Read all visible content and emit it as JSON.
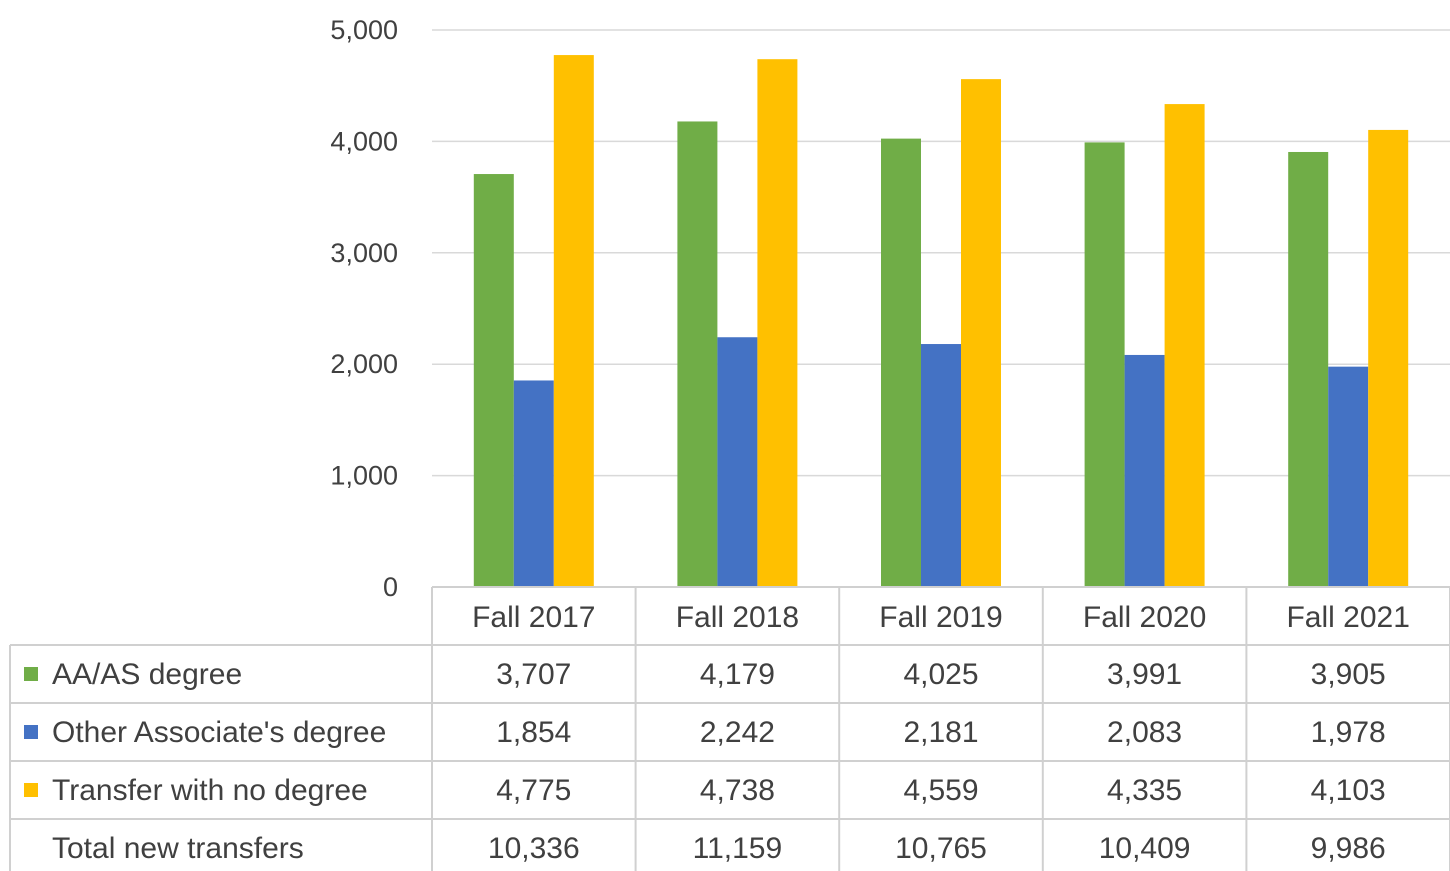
{
  "chart_data": {
    "type": "bar",
    "title": "",
    "xlabel": "",
    "ylabel": "",
    "ylim": [
      0,
      5000
    ],
    "y_ticks": [
      "0",
      "1,000",
      "2,000",
      "3,000",
      "4,000",
      "5,000"
    ],
    "y_tick_values": [
      0,
      1000,
      2000,
      3000,
      4000,
      5000
    ],
    "grid": true,
    "legend": "data-table",
    "categories": [
      "Fall 2017",
      "Fall 2018",
      "Fall 2019",
      "Fall 2020",
      "Fall 2021"
    ],
    "series": [
      {
        "name": "AA/AS degree",
        "color": "#70AD47",
        "values": [
          3707,
          4179,
          4025,
          3991,
          3905
        ],
        "labels": [
          "3,707",
          "4,179",
          "4,025",
          "3,991",
          "3,905"
        ]
      },
      {
        "name": "Other Associate's degree",
        "color": "#4472C4",
        "values": [
          1854,
          2242,
          2181,
          2083,
          1978
        ],
        "labels": [
          "1,854",
          "2,242",
          "2,181",
          "2,083",
          "1,978"
        ]
      },
      {
        "name": "Transfer with no degree",
        "color": "#FFC000",
        "values": [
          4775,
          4738,
          4559,
          4335,
          4103
        ],
        "labels": [
          "4,775",
          "4,738",
          "4,559",
          "4,335",
          "4,103"
        ]
      }
    ],
    "table_extra_rows": [
      {
        "name": "Total new transfers",
        "labels": [
          "10,336",
          "11,159",
          "10,765",
          "10,409",
          "9,986"
        ]
      }
    ]
  }
}
